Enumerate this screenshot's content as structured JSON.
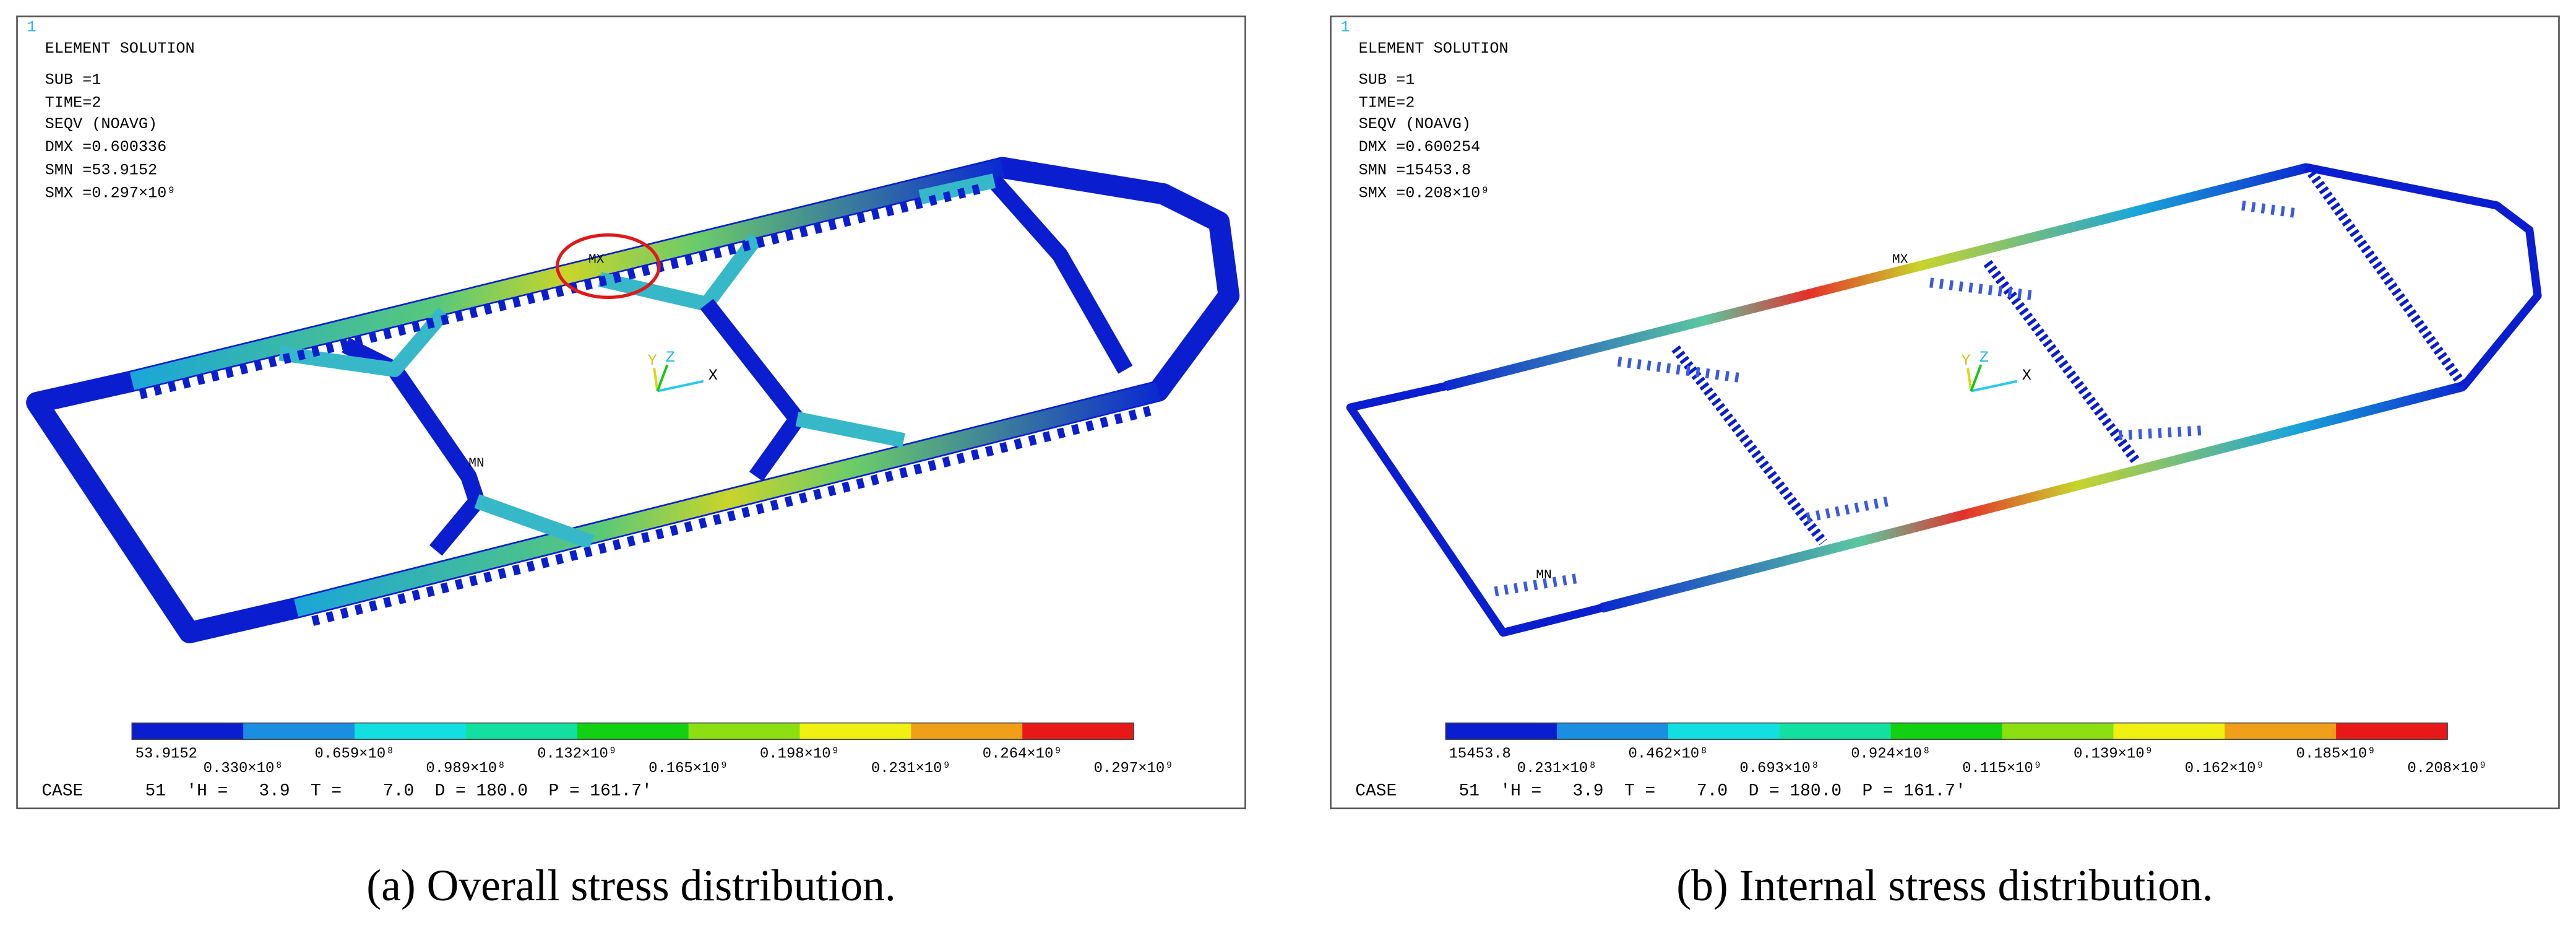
{
  "panels": [
    {
      "corner": "1",
      "header": [
        "ELEMENT SOLUTION",
        "SUB =1",
        "TIME=2",
        "SEQV     (NOAVG)",
        "DMX =0.600336",
        "SMN =53.9152",
        "SMX =0.297×10⁹"
      ],
      "max_label": "MX",
      "min_label": "MN",
      "triad": {
        "y": "Y",
        "z": "Z",
        "x": "X"
      },
      "legend": [
        "53.9152",
        "0.330×10⁸",
        "0.659×10⁸",
        "0.989×10⁸",
        "0.132×10⁹",
        "0.165×10⁹",
        "0.198×10⁹",
        "0.231×10⁹",
        "0.264×10⁹",
        "0.297×10⁹"
      ],
      "case": "CASE      51  'H =   3.9  T =    7.0  D = 180.0  P = 161.7'",
      "caption": "(a) Overall stress distribution."
    },
    {
      "corner": "1",
      "header": [
        "ELEMENT SOLUTION",
        "SUB =1",
        "TIME=2",
        "SEQV     (NOAVG)",
        "DMX =0.600254",
        "SMN =15453.8",
        "SMX =0.208×10⁹"
      ],
      "max_label": "MX",
      "min_label": "MN",
      "triad": {
        "y": "Y",
        "z": "Z",
        "x": "X"
      },
      "legend": [
        "15453.8",
        "0.231×10⁸",
        "0.462×10⁸",
        "0.693×10⁸",
        "0.924×10⁸",
        "0.115×10⁹",
        "0.139×10⁹",
        "0.162×10⁹",
        "0.185×10⁹",
        "0.208×10⁹"
      ],
      "case": "CASE      51  'H =   3.9  T =    7.0  D = 180.0  P = 161.7'",
      "caption": "(b) Internal stress distribution."
    }
  ]
}
